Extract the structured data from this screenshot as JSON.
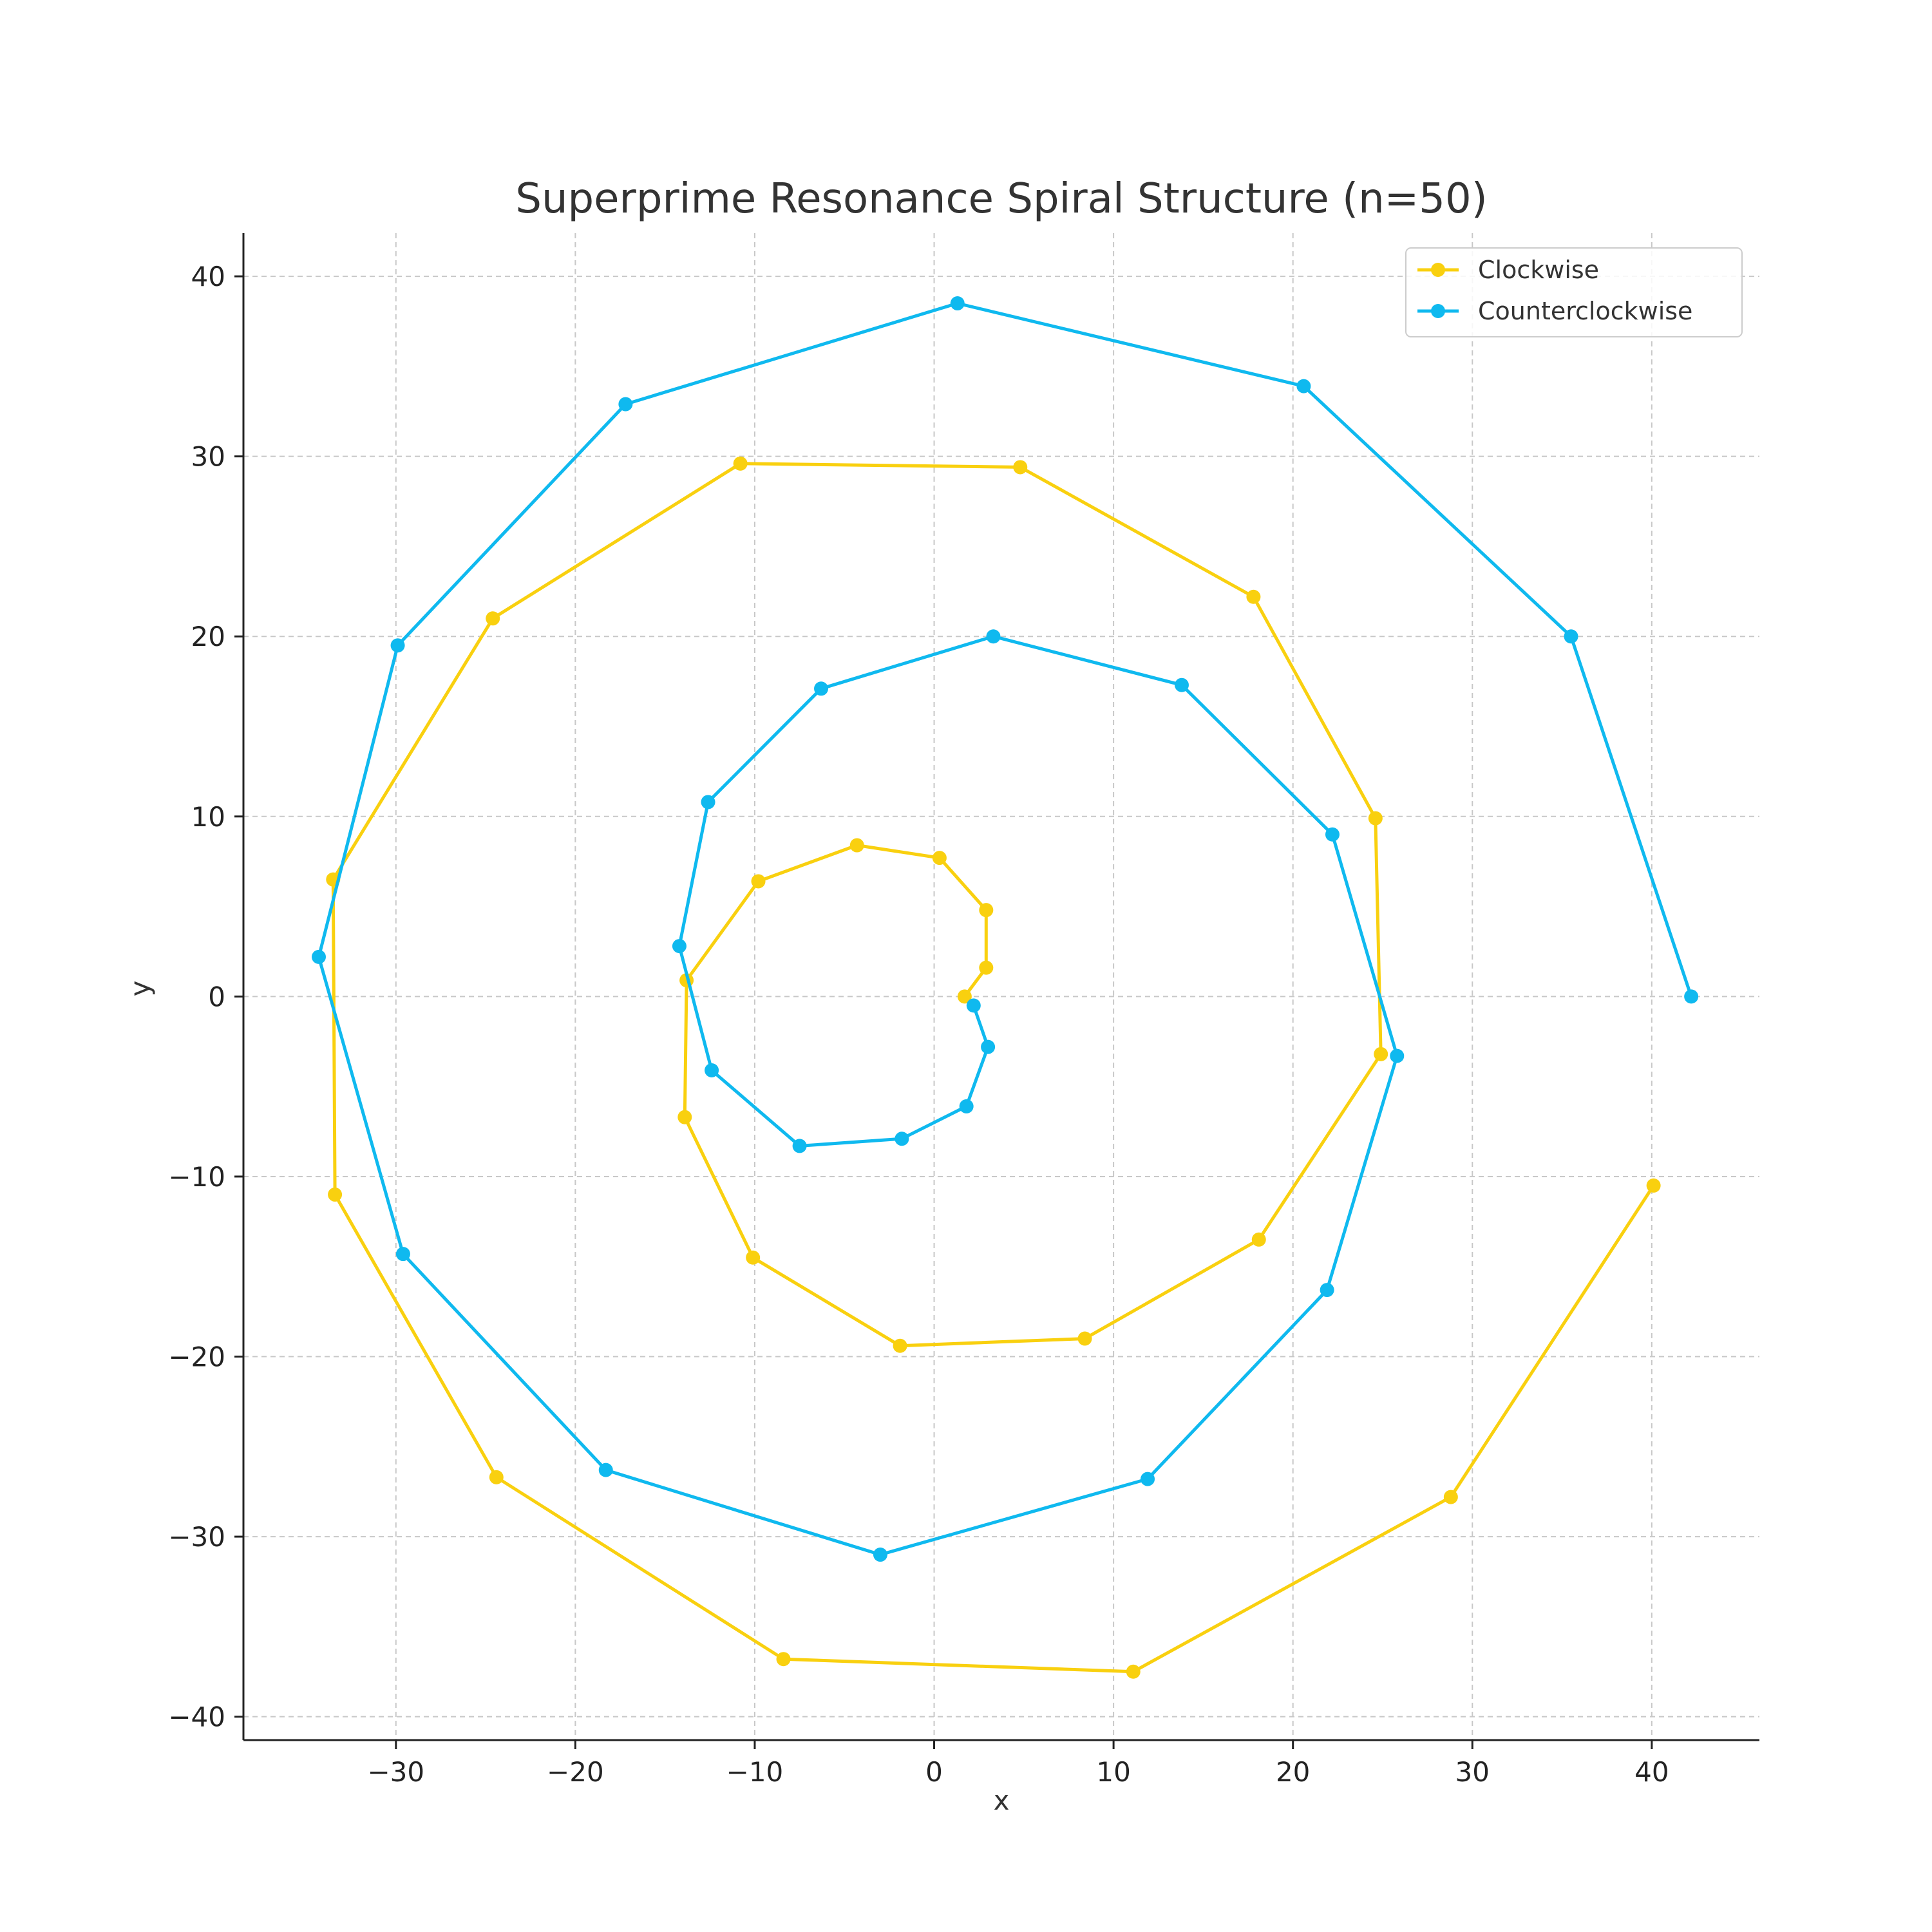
{
  "chart_data": {
    "type": "line",
    "title": "Superprime Resonance Spiral Structure (n=50)",
    "xlabel": "x",
    "ylabel": "y",
    "xlim": [
      -38.5,
      46.0
    ],
    "ylim": [
      -41.3,
      42.4
    ],
    "xticks": [
      -30,
      -20,
      -10,
      0,
      10,
      20,
      30,
      40
    ],
    "yticks": [
      -40,
      -30,
      -20,
      -10,
      0,
      10,
      20,
      30,
      40
    ],
    "grid": true,
    "legend_position": "top-right",
    "series": [
      {
        "name": "Clockwise",
        "color": "#f9d00f",
        "points": [
          [
            1.7,
            0.0
          ],
          [
            2.9,
            1.6
          ],
          [
            2.9,
            4.8
          ],
          [
            0.3,
            7.7
          ],
          [
            -4.3,
            8.4
          ],
          [
            -9.8,
            6.4
          ],
          [
            -13.8,
            0.9
          ],
          [
            -13.9,
            -6.7
          ],
          [
            -10.1,
            -14.5
          ],
          [
            -1.9,
            -19.4
          ],
          [
            8.4,
            -19.0
          ],
          [
            18.1,
            -13.5
          ],
          [
            24.9,
            -3.2
          ],
          [
            24.6,
            9.9
          ],
          [
            17.8,
            22.2
          ],
          [
            4.8,
            29.4
          ],
          [
            -10.8,
            29.6
          ],
          [
            -24.6,
            21.0
          ],
          [
            -33.5,
            6.5
          ],
          [
            -33.4,
            -11.0
          ],
          [
            -24.4,
            -26.7
          ],
          [
            -8.4,
            -36.8
          ],
          [
            11.1,
            -37.5
          ],
          [
            28.8,
            -27.8
          ],
          [
            40.1,
            -10.5
          ]
        ]
      },
      {
        "name": "Counterclockwise",
        "color": "#0fb9ef",
        "points": [
          [
            42.2,
            0.0
          ],
          [
            35.5,
            20.0
          ],
          [
            20.6,
            33.9
          ],
          [
            1.3,
            38.5
          ],
          [
            -17.2,
            32.9
          ],
          [
            -29.9,
            19.5
          ],
          [
            -34.3,
            2.2
          ],
          [
            -29.6,
            -14.3
          ],
          [
            -18.3,
            -26.3
          ],
          [
            -3.0,
            -31.0
          ],
          [
            11.9,
            -26.8
          ],
          [
            21.9,
            -16.3
          ],
          [
            25.8,
            -3.3
          ],
          [
            22.2,
            9.0
          ],
          [
            13.8,
            17.3
          ],
          [
            3.3,
            20.0
          ],
          [
            -6.3,
            17.1
          ],
          [
            -12.6,
            10.8
          ],
          [
            -14.2,
            2.8
          ],
          [
            -12.4,
            -4.1
          ],
          [
            -7.5,
            -8.3
          ],
          [
            -1.8,
            -7.9
          ],
          [
            1.8,
            -6.1
          ],
          [
            3.0,
            -2.8
          ],
          [
            2.2,
            -0.5
          ]
        ]
      }
    ]
  }
}
